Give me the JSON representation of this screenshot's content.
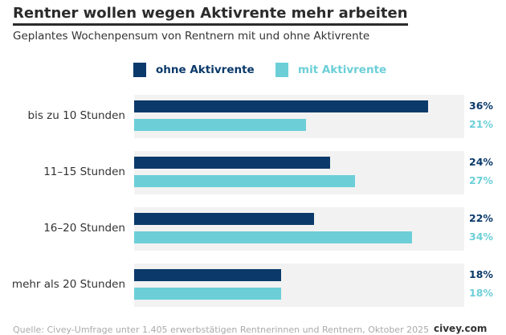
{
  "title": "Rentner wollen wegen Aktivrente mehr arbeiten",
  "subtitle": "Geplantes Wochenpensum von Rentnern mit und ohne Aktivrente",
  "footer": "Quelle: Civey-Umfrage unter 1.405 erwerbstätigen Rentnerinnen und Rentnern, Oktober 2025",
  "brand": "civey.com",
  "colors": {
    "ohne": "#0b3a6a",
    "mit": "#6ccfd8"
  },
  "chart_data": {
    "type": "bar",
    "orientation": "horizontal",
    "title": "Rentner wollen wegen Aktivrente mehr arbeiten",
    "subtitle": "Geplantes Wochenpensum von Rentnern mit und ohne Aktivrente",
    "categories": [
      "bis zu 10 Stunden",
      "11–15 Stunden",
      "16–20 Stunden",
      "mehr als 20 Stunden"
    ],
    "series": [
      {
        "name": "ohne Aktivrente",
        "values": [
          36,
          24,
          22,
          18
        ],
        "labels": [
          "36%",
          "24%",
          "22%",
          "18%"
        ]
      },
      {
        "name": "mit Aktivrente",
        "values": [
          21,
          27,
          34,
          18
        ],
        "labels": [
          "21%",
          "27%",
          "34%",
          "18%"
        ]
      }
    ],
    "unit": "%",
    "legend": "top",
    "grid": false
  }
}
